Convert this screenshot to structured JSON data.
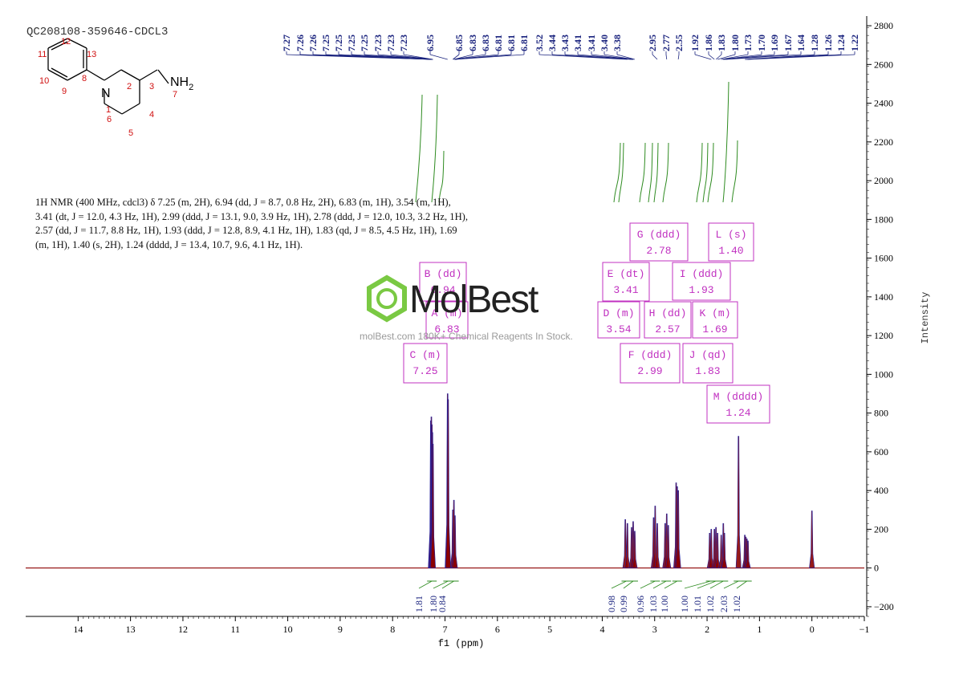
{
  "sample_id": "QC208108-359646-CDCL3",
  "nmr_summary": "1H NMR (400 MHz, cdcl3) δ 7.25 (m, 2H), 6.94 (dd, J = 8.7, 0.8 Hz, 2H), 6.83 (m, 1H), 3.54 (m, 1H), 3.41 (dt, J = 12.0, 4.3 Hz, 1H), 2.99 (ddd, J = 13.1, 9.0, 3.9 Hz, 1H), 2.78 (ddd, J = 12.0, 10.3, 3.2 Hz, 1H), 2.57 (dd, J = 11.7, 8.8 Hz, 1H), 1.93 (ddd, J = 12.8, 8.9, 4.1 Hz, 1H), 1.83 (qd, J = 8.5, 4.5 Hz, 1H), 1.69 (m, 1H), 1.40 (s, 2H), 1.24 (dddd, J = 13.4, 10.7, 9.6, 4.1 Hz, 1H).",
  "watermark": {
    "logo": "MolBest",
    "tagline": "molBest.com 180K+ Chemical Reagents In Stock."
  },
  "structure_labels": {
    "amine": "NH2",
    "nitrogen": "N",
    "atom_numbers": [
      "1",
      "2",
      "3",
      "4",
      "5",
      "6",
      "7",
      "8",
      "9",
      "10",
      "11",
      "12",
      "13"
    ]
  },
  "colors": {
    "spectrum": "#8b0000",
    "peak_fill": "#2020a0",
    "integral": "#2e8b20",
    "multiplet_box": "#c030c0",
    "peak_label": "#1a237e",
    "atom_number": "#d01010"
  },
  "chart_data": {
    "type": "line",
    "xlabel": "f1 (ppm)",
    "ylabel": "Intensity",
    "xlim": [
      15,
      -1
    ],
    "ylim": [
      -250,
      2850
    ],
    "x_ticks": [
      14,
      13,
      12,
      11,
      10,
      9,
      8,
      7,
      6,
      5,
      4,
      3,
      2,
      1,
      0,
      -1
    ],
    "x_tick_labels": [
      "14",
      "13",
      "12",
      "11",
      "10",
      "9",
      "8",
      "7",
      "6",
      "5",
      "4",
      "3",
      "2",
      "1",
      "0",
      "−1"
    ],
    "y_ticks": [
      -200,
      0,
      200,
      400,
      600,
      800,
      1000,
      1200,
      1400,
      1600,
      1800,
      2000,
      2200,
      2400,
      2600,
      2800
    ],
    "peaks": [
      {
        "ppm": 7.27,
        "height": 760
      },
      {
        "ppm": 7.26,
        "height": 780
      },
      {
        "ppm": 7.25,
        "height": 740
      },
      {
        "ppm": 7.24,
        "height": 700
      },
      {
        "ppm": 7.23,
        "height": 640
      },
      {
        "ppm": 6.95,
        "height": 900
      },
      {
        "ppm": 6.94,
        "height": 870
      },
      {
        "ppm": 6.85,
        "height": 300
      },
      {
        "ppm": 6.83,
        "height": 350
      },
      {
        "ppm": 6.81,
        "height": 270
      },
      {
        "ppm": 3.56,
        "height": 250
      },
      {
        "ppm": 3.52,
        "height": 230
      },
      {
        "ppm": 3.44,
        "height": 210
      },
      {
        "ppm": 3.41,
        "height": 240
      },
      {
        "ppm": 3.38,
        "height": 190
      },
      {
        "ppm": 3.02,
        "height": 260
      },
      {
        "ppm": 2.99,
        "height": 320
      },
      {
        "ppm": 2.95,
        "height": 230
      },
      {
        "ppm": 2.8,
        "height": 230
      },
      {
        "ppm": 2.77,
        "height": 280
      },
      {
        "ppm": 2.74,
        "height": 220
      },
      {
        "ppm": 2.59,
        "height": 440
      },
      {
        "ppm": 2.57,
        "height": 420
      },
      {
        "ppm": 2.55,
        "height": 400
      },
      {
        "ppm": 1.95,
        "height": 180
      },
      {
        "ppm": 1.92,
        "height": 200
      },
      {
        "ppm": 1.86,
        "height": 200
      },
      {
        "ppm": 1.83,
        "height": 210
      },
      {
        "ppm": 1.8,
        "height": 180
      },
      {
        "ppm": 1.73,
        "height": 170
      },
      {
        "ppm": 1.69,
        "height": 230
      },
      {
        "ppm": 1.67,
        "height": 180
      },
      {
        "ppm": 1.4,
        "height": 680
      },
      {
        "ppm": 1.28,
        "height": 170
      },
      {
        "ppm": 1.26,
        "height": 160
      },
      {
        "ppm": 1.24,
        "height": 150
      },
      {
        "ppm": 1.22,
        "height": 140
      },
      {
        "ppm": 0.0,
        "height": 295
      }
    ],
    "peak_labels": [
      "7.27",
      "7.26",
      "7.26",
      "7.25",
      "7.25",
      "7.25",
      "7.25",
      "7.23",
      "7.23",
      "7.23",
      "6.95",
      "6.85",
      "6.83",
      "6.83",
      "6.81",
      "6.81",
      "6.81",
      "3.52",
      "3.44",
      "3.43",
      "3.41",
      "3.41",
      "3.40",
      "3.38",
      "2.95",
      "2.77",
      "2.55",
      "1.92",
      "1.86",
      "1.83",
      "1.80",
      "1.73",
      "1.70",
      "1.69",
      "1.67",
      "1.64",
      "1.28",
      "1.26",
      "1.24",
      "1.22"
    ],
    "multiplets": [
      {
        "letter": "B",
        "type": "dd",
        "shift": "6.94"
      },
      {
        "letter": "A",
        "type": "m",
        "shift": "6.83"
      },
      {
        "letter": "C",
        "type": "m",
        "shift": "7.25"
      },
      {
        "letter": "G",
        "type": "ddd",
        "shift": "2.78"
      },
      {
        "letter": "L",
        "type": "s",
        "shift": "1.40"
      },
      {
        "letter": "E",
        "type": "dt",
        "shift": "3.41"
      },
      {
        "letter": "I",
        "type": "ddd",
        "shift": "1.93"
      },
      {
        "letter": "D",
        "type": "m",
        "shift": "3.54"
      },
      {
        "letter": "H",
        "type": "dd",
        "shift": "2.57"
      },
      {
        "letter": "K",
        "type": "m",
        "shift": "1.69"
      },
      {
        "letter": "F",
        "type": "ddd",
        "shift": "2.99"
      },
      {
        "letter": "J",
        "type": "qd",
        "shift": "1.83"
      },
      {
        "letter": "M",
        "type": "dddd",
        "shift": "1.24"
      }
    ],
    "integrals": [
      {
        "ppm": 7.25,
        "value": "1.81"
      },
      {
        "ppm": 6.94,
        "value": "1.80"
      },
      {
        "ppm": 6.83,
        "value": "0.84"
      },
      {
        "ppm": 3.54,
        "value": "0.98"
      },
      {
        "ppm": 3.41,
        "value": "0.99"
      },
      {
        "ppm": 2.99,
        "value": "0.96"
      },
      {
        "ppm": 2.78,
        "value": "1.03"
      },
      {
        "ppm": 2.57,
        "value": "1.00"
      },
      {
        "ppm": 1.93,
        "value": "1.00"
      },
      {
        "ppm": 1.83,
        "value": "1.01"
      },
      {
        "ppm": 1.69,
        "value": "1.02"
      },
      {
        "ppm": 1.4,
        "value": "2.03"
      },
      {
        "ppm": 1.24,
        "value": "1.02"
      }
    ]
  }
}
